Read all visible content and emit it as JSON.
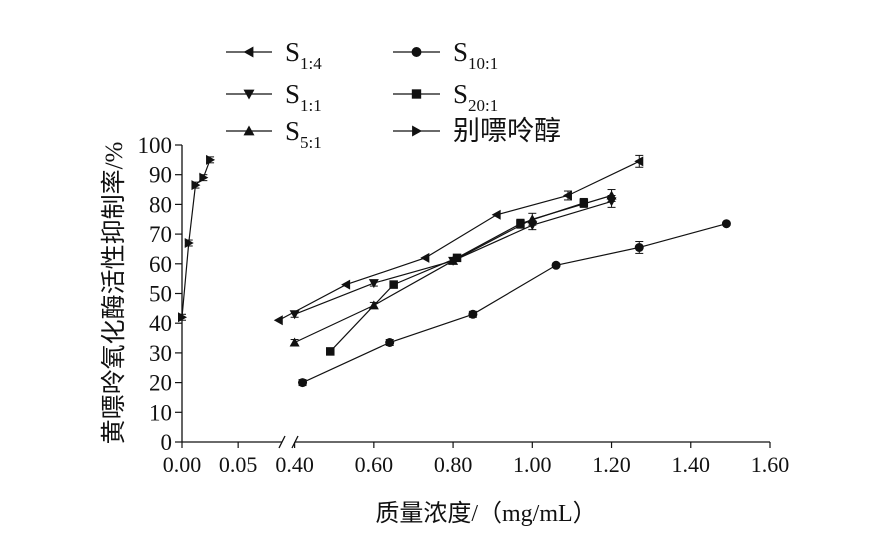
{
  "chart_data": {
    "type": "line",
    "xlabel": "质量浓度/（mg/mL）",
    "ylabel": "黄嘌呤氧化酶活性抑制率/%",
    "ylim": [
      0,
      100
    ],
    "y_ticks": [
      "0",
      "10",
      "20",
      "30",
      "40",
      "50",
      "60",
      "70",
      "80",
      "90",
      "100"
    ],
    "x_axis_broken": true,
    "x_segment_left": {
      "range": [
        0.0,
        0.065
      ],
      "ticks": [
        0.0,
        0.05
      ],
      "tick_labels": [
        "0.00",
        "0.05"
      ]
    },
    "x_segment_right": {
      "range": [
        0.3,
        1.6
      ],
      "ticks": [
        0.4,
        0.6,
        0.8,
        1.0,
        1.2,
        1.4,
        1.6
      ],
      "tick_labels": [
        "0.40",
        "0.60",
        "0.80",
        "1.00",
        "1.20",
        "1.40",
        "1.60"
      ]
    },
    "legend_position": "top-left",
    "series": [
      {
        "name": "S",
        "sub": "1:4",
        "marker": "triangle-left",
        "x": [
          0.36,
          0.53,
          0.73,
          0.91,
          1.09,
          1.27
        ],
        "y": [
          41,
          53,
          62,
          76.5,
          83,
          94.5
        ],
        "err": [
          0,
          0,
          0,
          0,
          1.5,
          2
        ]
      },
      {
        "name": "S",
        "sub": "1:1",
        "marker": "triangle-down",
        "x": [
          0.4,
          0.6,
          0.8,
          1.0,
          1.2
        ],
        "y": [
          43,
          53.5,
          61,
          73,
          81
        ],
        "err": [
          1,
          1,
          1,
          1.5,
          2
        ]
      },
      {
        "name": "S",
        "sub": "5:1",
        "marker": "triangle-up",
        "x": [
          0.4,
          0.6,
          0.8,
          1.0,
          1.2
        ],
        "y": [
          33.5,
          46,
          61,
          75,
          83
        ],
        "err": [
          1,
          1,
          1,
          2,
          2
        ]
      },
      {
        "name": "S",
        "sub": "10:1",
        "marker": "circle",
        "x": [
          0.42,
          0.64,
          0.85,
          1.06,
          1.27,
          1.49
        ],
        "y": [
          20,
          33.5,
          43,
          59.5,
          65.5,
          73.5
        ],
        "err": [
          1,
          1,
          1,
          0.5,
          2,
          0.5
        ]
      },
      {
        "name": "S",
        "sub": "20:1",
        "marker": "square",
        "x": [
          0.49,
          0.65,
          0.81,
          0.97,
          1.13
        ],
        "y": [
          30.5,
          53,
          62,
          73.5,
          80.5
        ],
        "err": [
          1,
          1,
          1,
          1.5,
          1.5
        ]
      },
      {
        "name": "别嘌呤醇",
        "sub": "",
        "marker": "triangle-right",
        "x": [
          0.0,
          0.006,
          0.012,
          0.019,
          0.025
        ],
        "y": [
          42,
          67,
          86.5,
          89,
          95
        ],
        "err": [
          1,
          1,
          1,
          1,
          1
        ]
      }
    ]
  }
}
